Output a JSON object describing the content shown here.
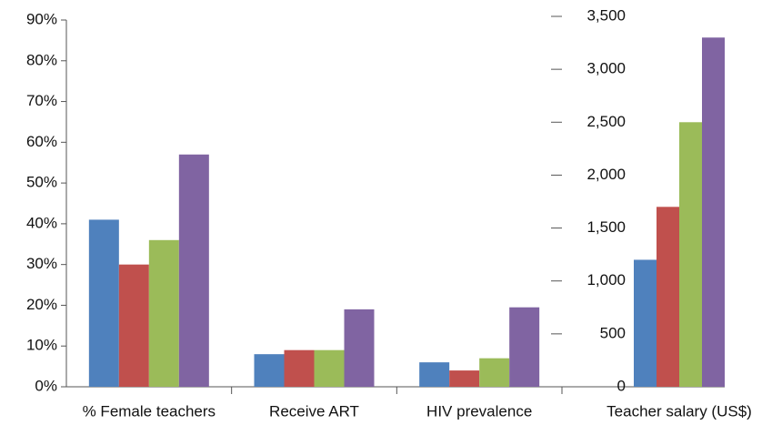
{
  "chart_data": {
    "type": "bar",
    "categories": [
      "% Female teachers",
      "Receive ART",
      "HIV prevalence",
      "Teacher salary (US$)"
    ],
    "series": [
      {
        "color": "#4f81bd",
        "values": [
          41,
          8,
          6,
          null
        ]
      },
      {
        "color": "#c0504d",
        "values": [
          30,
          9,
          4,
          null
        ]
      },
      {
        "color": "#9bbb59",
        "values": [
          36,
          9,
          7,
          null
        ]
      },
      {
        "color": "#8064a2",
        "values": [
          57,
          19,
          19.5,
          null
        ]
      },
      {
        "color": "#4f81bd",
        "axis": "y2",
        "values": [
          null,
          null,
          null,
          1200
        ]
      },
      {
        "color": "#c0504d",
        "axis": "y2",
        "values": [
          null,
          null,
          null,
          1700
        ]
      },
      {
        "color": "#9bbb59",
        "axis": "y2",
        "values": [
          null,
          null,
          null,
          2500
        ]
      },
      {
        "color": "#8064a2",
        "axis": "y2",
        "values": [
          null,
          null,
          null,
          3300
        ]
      }
    ],
    "ylim": [
      0,
      90
    ],
    "yticks": [
      {
        "value": 0,
        "label": "0%"
      },
      {
        "value": 10,
        "label": "10%"
      },
      {
        "value": 20,
        "label": "20%"
      },
      {
        "value": 30,
        "label": "30%"
      },
      {
        "value": 40,
        "label": "40%"
      },
      {
        "value": 50,
        "label": "50%"
      },
      {
        "value": 60,
        "label": "60%"
      },
      {
        "value": 70,
        "label": "70%"
      },
      {
        "value": 80,
        "label": "80%"
      },
      {
        "value": 90,
        "label": "90%"
      }
    ],
    "y2lim": [
      0,
      3500
    ],
    "y2ticks": [
      0,
      500,
      {
        "value": 1000,
        "label": "1,000"
      },
      {
        "value": 1500,
        "label": "1,500"
      },
      {
        "value": 2000,
        "label": "2,000"
      },
      {
        "value": 2500,
        "label": "2,500"
      },
      {
        "value": 3000,
        "label": "3,000"
      },
      {
        "value": 3500,
        "label": "3,500"
      }
    ],
    "grid": false
  }
}
